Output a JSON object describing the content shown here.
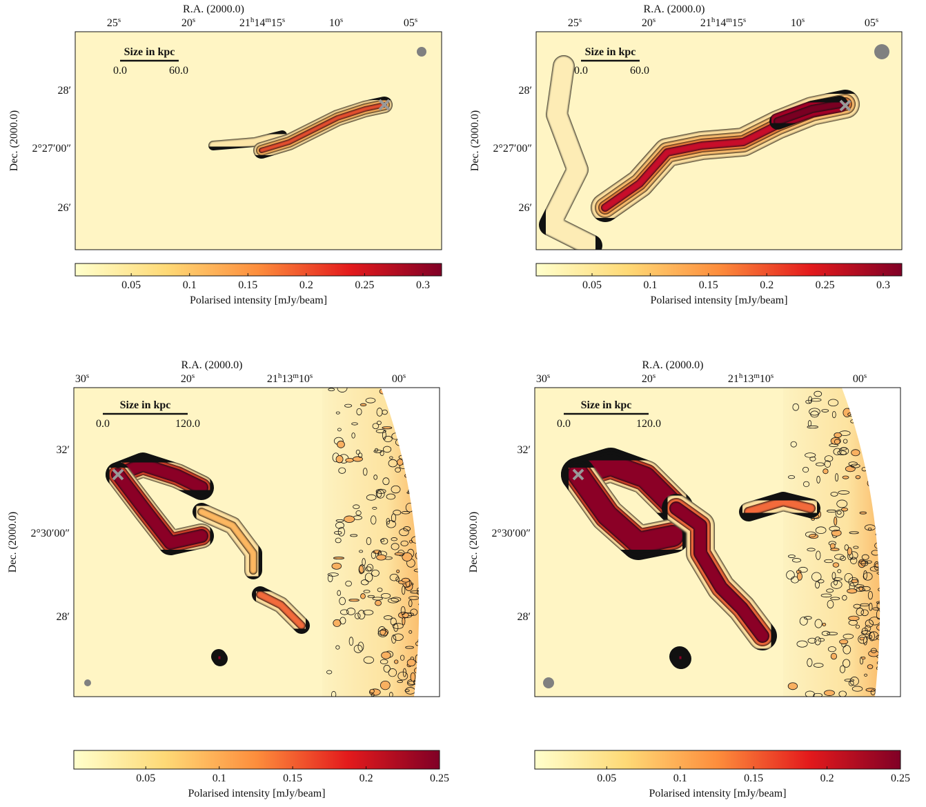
{
  "panels": [
    {
      "ra_title": "R.A. (2000.0)",
      "dec_title": "Dec. (2000.0)",
      "ra_ticks": [
        [
          "25",
          {
            "sup": "s"
          }
        ],
        [
          "20",
          {
            "sup": "s"
          }
        ],
        [
          "21",
          {
            "sup": "h"
          },
          "14",
          {
            "sup": "m"
          },
          "15",
          {
            "sup": "s"
          }
        ],
        [
          "10",
          {
            "sup": "s"
          }
        ],
        [
          "05",
          {
            "sup": "s"
          }
        ]
      ],
      "dec_ticks": [
        "28′",
        "2°27′00″",
        "26′"
      ],
      "scalebar": {
        "title": "Size in kpc",
        "start": "0.0",
        "end": "60.0"
      },
      "colorbar": {
        "label": "Polarised intensity [mJy/beam]",
        "clim": [
          0.002,
          0.316
        ],
        "ticks": [
          0.05,
          0.1,
          0.15,
          0.2,
          0.25,
          0.3
        ]
      }
    },
    {
      "ra_title": "R.A. (2000.0)",
      "dec_title": "Dec. (2000.0)",
      "ra_ticks": [
        [
          "25",
          {
            "sup": "s"
          }
        ],
        [
          "20",
          {
            "sup": "s"
          }
        ],
        [
          "21",
          {
            "sup": "h"
          },
          "14",
          {
            "sup": "m"
          },
          "15",
          {
            "sup": "s"
          }
        ],
        [
          "10",
          {
            "sup": "s"
          }
        ],
        [
          "05",
          {
            "sup": "s"
          }
        ]
      ],
      "dec_ticks": [
        "28′",
        "2°27′00″",
        "26′"
      ],
      "scalebar": {
        "title": "Size in kpc",
        "start": "0.0",
        "end": "60.0"
      },
      "colorbar": {
        "label": "Polarised intensity [mJy/beam]",
        "clim": [
          0.002,
          0.316
        ],
        "ticks": [
          0.05,
          0.1,
          0.15,
          0.2,
          0.25,
          0.3
        ]
      }
    },
    {
      "ra_title": "R.A. (2000.0)",
      "dec_title": "Dec. (2000.0)",
      "ra_ticks": [
        [
          "30",
          {
            "sup": "s"
          }
        ],
        [
          "20",
          {
            "sup": "s"
          }
        ],
        [
          "21",
          {
            "sup": "h"
          },
          "13",
          {
            "sup": "m"
          },
          "10",
          {
            "sup": "s"
          }
        ],
        [
          "00",
          {
            "sup": "s"
          }
        ]
      ],
      "dec_ticks": [
        "32′",
        "2°30′00″",
        "28′"
      ],
      "scalebar": {
        "title": "Size in kpc",
        "start": "0.0",
        "end": "120.0"
      },
      "colorbar": {
        "label": "Polarised intensity [mJy/beam]",
        "clim": [
          0.001,
          0.25
        ],
        "ticks": [
          0.05,
          0.1,
          0.15,
          0.2,
          0.25
        ]
      }
    },
    {
      "ra_title": "R.A. (2000.0)",
      "dec_title": "Dec. (2000.0)",
      "ra_ticks": [
        [
          "30",
          {
            "sup": "s"
          }
        ],
        [
          "20",
          {
            "sup": "s"
          }
        ],
        [
          "21",
          {
            "sup": "h"
          },
          "13",
          {
            "sup": "m"
          },
          "10",
          {
            "sup": "s"
          }
        ],
        [
          "00",
          {
            "sup": "s"
          }
        ]
      ],
      "dec_ticks": [
        "32′",
        "2°30′00″",
        "28′"
      ],
      "scalebar": {
        "title": "Size in kpc",
        "start": "0.0",
        "end": "120.0"
      },
      "colorbar": {
        "label": "Polarised intensity [mJy/beam]",
        "clim": [
          0.001,
          0.25
        ],
        "ticks": [
          0.05,
          0.1,
          0.15,
          0.2,
          0.25
        ]
      }
    }
  ]
}
